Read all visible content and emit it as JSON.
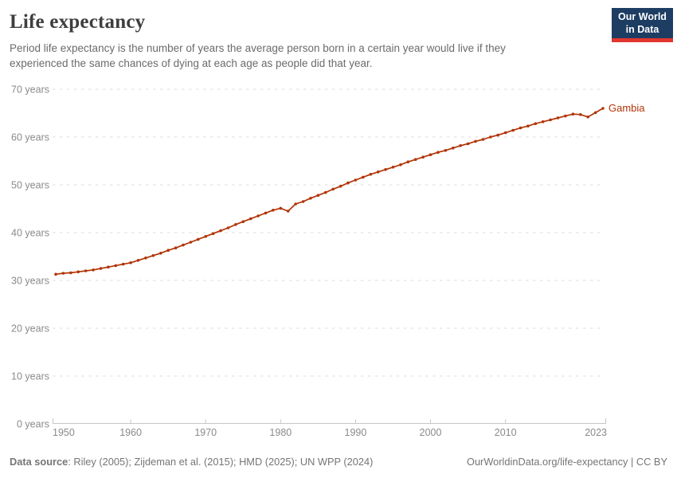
{
  "header": {
    "title": "Life expectancy",
    "subtitle_line1": "Period life expectancy is the number of years the average person born in a certain year would live if they",
    "subtitle_line2": "experienced the same chances of dying at each age as people did that year."
  },
  "logo": {
    "line1": "Our World",
    "line2": "in Data"
  },
  "chart_data": {
    "type": "line",
    "title": "Life expectancy",
    "entity_label": "Gambia",
    "unit": "years",
    "xlim": [
      1950,
      2023
    ],
    "ylim": [
      0,
      70
    ],
    "grid": "horizontal-dashed",
    "legend_position": "end-of-line-label",
    "x_ticks": [
      1950,
      1960,
      1970,
      1980,
      1990,
      2000,
      2010,
      2023
    ],
    "y_ticks": [
      0,
      10,
      20,
      30,
      40,
      50,
      60,
      70
    ],
    "y_tick_suffix": " years",
    "series": [
      {
        "name": "Gambia",
        "x": [
          1950,
          1951,
          1952,
          1953,
          1954,
          1955,
          1956,
          1957,
          1958,
          1959,
          1960,
          1961,
          1962,
          1963,
          1964,
          1965,
          1966,
          1967,
          1968,
          1969,
          1970,
          1971,
          1972,
          1973,
          1974,
          1975,
          1976,
          1977,
          1978,
          1979,
          1980,
          1981,
          1982,
          1983,
          1984,
          1985,
          1986,
          1987,
          1988,
          1989,
          1990,
          1991,
          1992,
          1993,
          1994,
          1995,
          1996,
          1997,
          1998,
          1999,
          2000,
          2001,
          2002,
          2003,
          2004,
          2005,
          2006,
          2007,
          2008,
          2009,
          2010,
          2011,
          2012,
          2013,
          2014,
          2015,
          2016,
          2017,
          2018,
          2019,
          2020,
          2021,
          2022,
          2023
        ],
        "values": [
          31.3,
          31.5,
          31.6,
          31.8,
          32.0,
          32.2,
          32.5,
          32.8,
          33.1,
          33.4,
          33.7,
          34.2,
          34.7,
          35.2,
          35.7,
          36.3,
          36.8,
          37.4,
          38.0,
          38.6,
          39.2,
          39.8,
          40.4,
          41.0,
          41.7,
          42.3,
          42.9,
          43.5,
          44.1,
          44.7,
          45.1,
          44.5,
          46.0,
          46.5,
          47.2,
          47.8,
          48.4,
          49.1,
          49.7,
          50.4,
          51.0,
          51.6,
          52.2,
          52.7,
          53.2,
          53.7,
          54.2,
          54.8,
          55.3,
          55.8,
          56.3,
          56.8,
          57.2,
          57.7,
          58.2,
          58.6,
          59.1,
          59.5,
          60.0,
          60.4,
          60.9,
          61.4,
          61.9,
          62.3,
          62.8,
          63.2,
          63.6,
          64.0,
          64.4,
          64.8,
          64.7,
          64.2,
          65.1,
          66.0
        ]
      }
    ]
  },
  "footer": {
    "source_label": "Data source",
    "source_text": ": Riley (2005); Zijdeman et al. (2015); HMD (2025); UN WPP (2024)",
    "rights": "OurWorldinData.org/life-expectancy | CC BY"
  },
  "colors": {
    "line": "#b13507",
    "title": "#3e3e3e",
    "subtitle": "#6b6b6b",
    "axis_text": "#8a8a8a",
    "grid": "#dcdcdc",
    "axis_line": "#c6c6c6",
    "footer": "#757575",
    "logo_bg": "#1d3d63",
    "logo_bar": "#e0362f"
  }
}
